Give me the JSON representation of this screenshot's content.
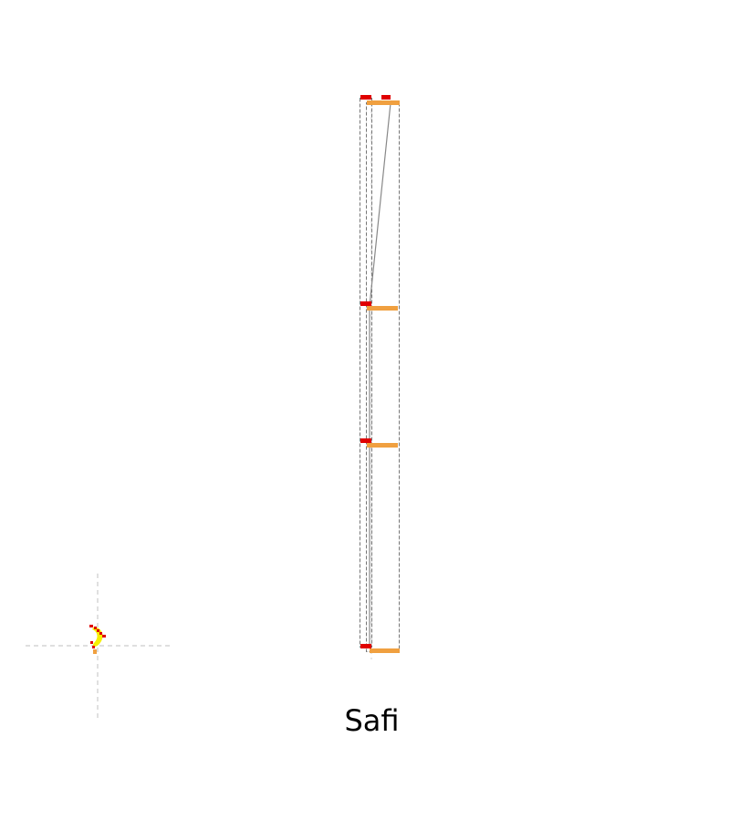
{
  "caption": "Safi",
  "colors": {
    "frame": "#777777",
    "guide": "#cccccc",
    "red": "#e00000",
    "orange": "#f0a040",
    "yellow": "#f5f000"
  }
}
